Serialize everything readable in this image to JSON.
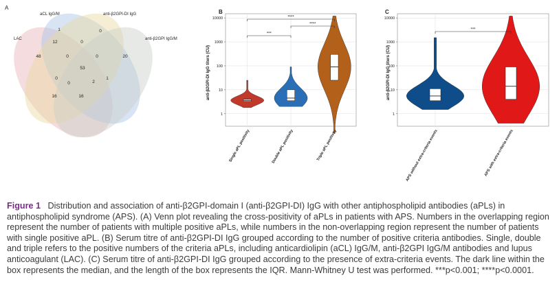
{
  "panels": {
    "a": {
      "label": "A"
    },
    "b": {
      "label": "B"
    },
    "c": {
      "label": "C"
    }
  },
  "chart_data": [
    {
      "type": "venn",
      "sets": [
        "LAC",
        "aCL IgG/M",
        "anti-β2GPI-DI IgG",
        "anti-β2GPI IgG/M"
      ],
      "region_values": [
        1,
        0,
        12,
        0,
        48,
        0,
        0,
        20,
        0,
        53,
        1,
        0,
        2,
        16,
        16
      ]
    },
    {
      "type": "violin",
      "ylabel": "anti-β2GPI-DI IgG titers (CU)",
      "y_scale": "log",
      "ylim": [
        0.3,
        15000
      ],
      "yticks": [
        "1",
        "10",
        "100",
        "1000",
        "10000"
      ],
      "categories": [
        "Single aPL positivity",
        "Double aPL positivity",
        "Triple aPL positivity"
      ],
      "colors": [
        "#c0392b",
        "#2a6fb5",
        "#b3611a"
      ],
      "box": [
        {
          "q1": 3.3,
          "median": 3.6,
          "q3": 4.0
        },
        {
          "q1": 3.5,
          "median": 4.5,
          "q3": 10
        },
        {
          "q1": 25,
          "median": 90,
          "q3": 300
        }
      ],
      "range": [
        [
          1.8,
          25
        ],
        [
          2,
          90
        ],
        [
          0.15,
          12000
        ]
      ],
      "significance": [
        {
          "from": 0,
          "to": 1,
          "label": "***"
        },
        {
          "from": 1,
          "to": 2,
          "label": "****"
        },
        {
          "from": 0,
          "to": 2,
          "label": "****"
        }
      ],
      "grid": true
    },
    {
      "type": "violin",
      "ylabel": "anti-β2GPI-DI IgG titers (CU)",
      "y_scale": "log",
      "ylim": [
        0.3,
        15000
      ],
      "yticks": [
        "1",
        "10",
        "100",
        "1000",
        "10000"
      ],
      "categories": [
        "APS without extra-criteria events",
        "APS with extra-criteria events"
      ],
      "colors": [
        "#0f4c8a",
        "#e01818"
      ],
      "box": [
        {
          "q1": 3.5,
          "median": 5.5,
          "q3": 11
        },
        {
          "q1": 4,
          "median": 14,
          "q3": 90
        }
      ],
      "range": [
        [
          1.5,
          1500
        ],
        [
          0.4,
          12000
        ]
      ],
      "significance": [
        {
          "from": 0,
          "to": 1,
          "label": "***"
        }
      ],
      "grid": true
    }
  ],
  "caption": {
    "head": "Figure 1",
    "text": "Distribution and association of anti-β2GPI-domain I (anti-β2GPI-DI) IgG with other antiphospholipid antibodies (aPLs) in antiphospholipid syndrome (APS). (A) Venn plot revealing the cross-positivity of aPLs in patients with APS. Numbers in the overlapping region represent the number of patients with multiple positive aPLs, while numbers in the non-overlapping region represent the number of patients with single positive aPL. (B) Serum titre of anti-β2GPI-DI IgG grouped according to the number of positive criteria antibodies. Single, double and triple refers to the positive numbers of the criteria aPLs, including anticardiolipin (aCL) IgG/M, anti-β2GPI IgG/M antibodies and lupus anticoagulant (LAC). (C) Serum titre of anti-β2GPI-DI IgG grouped according to the presence of extra-criteria events. The dark line within the box represents the median, and the length of the box represents the IQR. Mann-Whitney U test was performed. ***p<0.001; ****p<0.0001."
  }
}
